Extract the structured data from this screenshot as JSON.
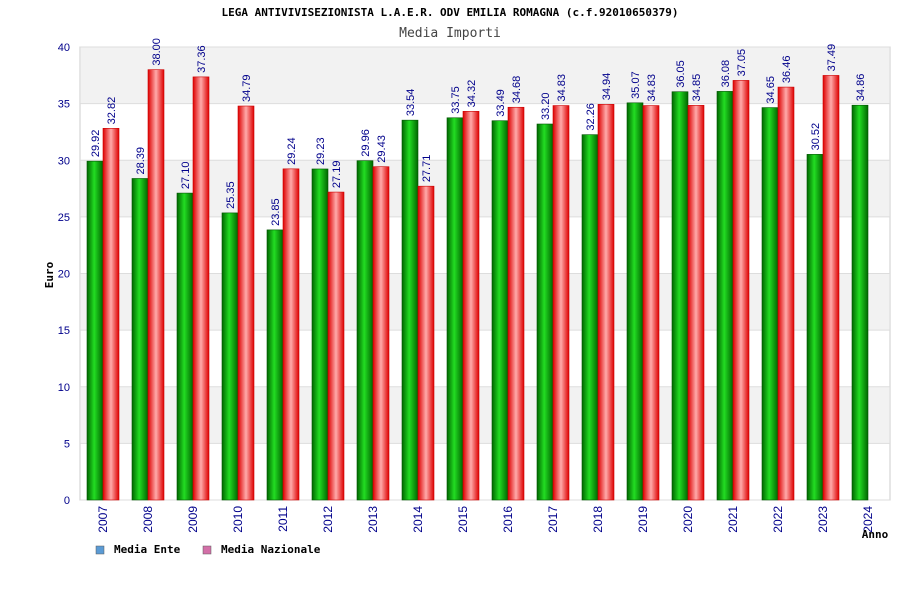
{
  "chart_data": {
    "type": "bar",
    "title": "LEGA ANTIVIVISEZIONISTA L.A.E.R. ODV EMILIA ROMAGNA (c.f.92010650379)",
    "subtitle": "Media Importi",
    "xlabel": "Anno",
    "ylabel": "Euro",
    "ylim": [
      0,
      40
    ],
    "yticks": [
      "0",
      "5",
      "10",
      "15",
      "20",
      "25",
      "30",
      "35",
      "40"
    ],
    "grid": "horizontal",
    "legend_position": "bottom-left",
    "categories": [
      "2007",
      "2008",
      "2009",
      "2010",
      "2011",
      "2012",
      "2013",
      "2014",
      "2015",
      "2016",
      "2017",
      "2018",
      "2019",
      "2020",
      "2021",
      "2022",
      "2023",
      "2024"
    ],
    "series": [
      {
        "name": "Media Ente",
        "color": "#00aa00",
        "legend_color": "#5b9bd5",
        "values": [
          29.92,
          28.39,
          27.1,
          25.35,
          23.85,
          29.23,
          29.96,
          33.54,
          33.75,
          33.49,
          33.2,
          32.26,
          35.07,
          36.05,
          36.08,
          34.65,
          30.52,
          34.86
        ],
        "labels": [
          "29.92",
          "28.39",
          "27.10",
          "25.35",
          "23.85",
          "29.23",
          "29.96",
          "33.54",
          "33.75",
          "33.49",
          "33.20",
          "32.26",
          "35.07",
          "36.05",
          "36.08",
          "34.65",
          "30.52",
          "34.86"
        ]
      },
      {
        "name": "Media Nazionale",
        "color": "#ee1111",
        "legend_color": "#d36fa8",
        "values": [
          32.82,
          38.0,
          37.36,
          34.79,
          29.24,
          27.19,
          29.43,
          27.71,
          34.32,
          34.68,
          34.83,
          34.94,
          34.83,
          34.85,
          37.05,
          36.46,
          37.49,
          null
        ],
        "labels": [
          "32.82",
          "38.00",
          "37.36",
          "34.79",
          "29.24",
          "27.19",
          "29.43",
          "27.71",
          "34.32",
          "34.68",
          "34.83",
          "34.94",
          "34.83",
          "34.85",
          "37.05",
          "36.46",
          "37.49",
          ""
        ]
      }
    ]
  }
}
